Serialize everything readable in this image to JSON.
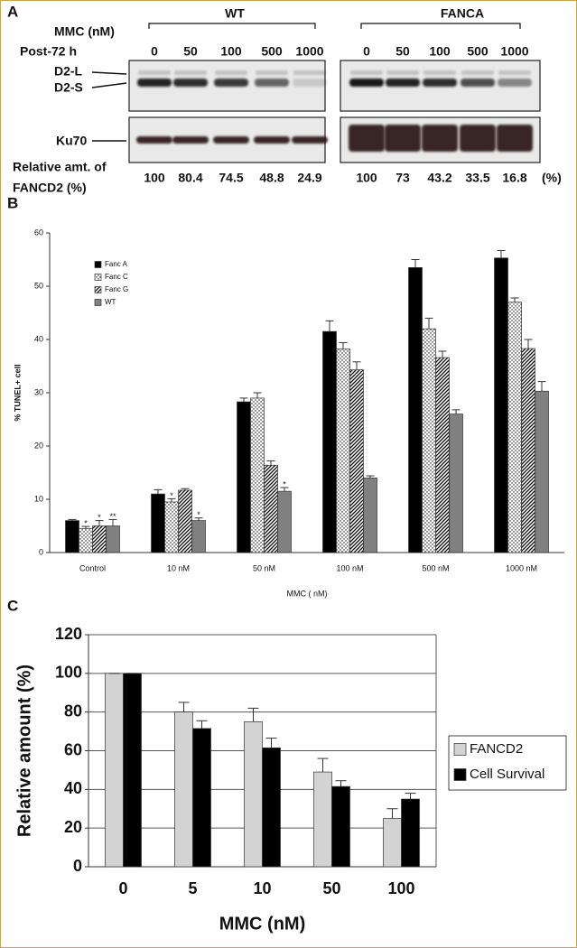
{
  "panel_a": {
    "label": "A",
    "mmc_label": "MMC (nM)",
    "time_label": "Post-72 h",
    "groups": [
      {
        "name": "WT",
        "lanes": [
          0,
          50,
          100,
          500,
          1000
        ],
        "relative_amounts": [
          100,
          80.4,
          74.5,
          48.8,
          24.9
        ]
      },
      {
        "name": "FANCA",
        "lanes": [
          0,
          50,
          100,
          500,
          1000
        ],
        "relative_amounts": [
          100,
          73,
          43.2,
          33.5,
          16.8
        ]
      }
    ],
    "bands": [
      "D2-L",
      "D2-S",
      "Ku70"
    ],
    "relative_label": [
      "Relative amt. of",
      "FANCD2 (%)"
    ],
    "unit": "(%)"
  },
  "chart_data": [
    {
      "type": "bar",
      "panel": "B",
      "xlabel": "MMC ( nM)",
      "ylabel": "% TUNEL+ cell",
      "categories": [
        "Control",
        "10 nM",
        "50 nM",
        "100 nM",
        "500 nM",
        "1000 nM"
      ],
      "series": [
        {
          "name": "Fanc A",
          "color": "#000000",
          "values": [
            6,
            11,
            28.3,
            41.5,
            53.5,
            55.3
          ],
          "errors": [
            0.2,
            0.8,
            0.7,
            2,
            1.5,
            1.4
          ]
        },
        {
          "name": "Fanc C",
          "color": "#ffffff",
          "pattern": "dots",
          "values": [
            4.5,
            9.5,
            29,
            38.2,
            42,
            47
          ],
          "errors": [
            0.4,
            0.6,
            1,
            1.2,
            2,
            0.8
          ],
          "significance": [
            "*",
            "*",
            null,
            null,
            null,
            null
          ]
        },
        {
          "name": "Fanc G",
          "color": "#ffffff",
          "pattern": "hatch",
          "values": [
            5,
            11.7,
            16.4,
            34.3,
            36.6,
            38.3
          ],
          "errors": [
            1,
            0.3,
            0.8,
            1.5,
            1.2,
            1.7
          ],
          "significance": [
            "*",
            null,
            null,
            null,
            null,
            null
          ]
        },
        {
          "name": "WT",
          "color": "#808080",
          "values": [
            5,
            6,
            11.5,
            14,
            26,
            30.3
          ],
          "errors": [
            1.2,
            0.5,
            0.7,
            0.4,
            0.8,
            1.8
          ],
          "significance": [
            "**",
            "*",
            "*",
            null,
            null,
            null
          ]
        }
      ],
      "ylim": [
        0,
        60
      ],
      "yticks": [
        0,
        10,
        20,
        30,
        40,
        50,
        60
      ],
      "grid": false,
      "legend": "upper left"
    },
    {
      "type": "bar",
      "panel": "C",
      "xlabel": "MMC (nM)",
      "ylabel": "Relative amount (%)",
      "categories": [
        "0",
        "5",
        "10",
        "50",
        "100"
      ],
      "series": [
        {
          "name": "FANCD2",
          "color": "#d3d3d3",
          "values": [
            100,
            80,
            75,
            49,
            25
          ],
          "errors": [
            0,
            5,
            7,
            7,
            5
          ]
        },
        {
          "name": "Cell Survival",
          "color": "#000000",
          "values": [
            100,
            71.5,
            61.5,
            41.5,
            35
          ],
          "errors": [
            0,
            4,
            5,
            3,
            3
          ]
        }
      ],
      "ylim": [
        0,
        120
      ],
      "yticks": [
        0,
        20,
        40,
        60,
        80,
        100,
        120
      ],
      "grid": true,
      "legend": "right"
    }
  ]
}
